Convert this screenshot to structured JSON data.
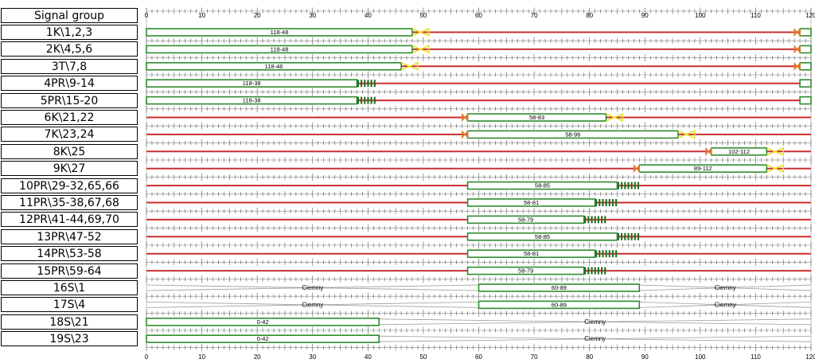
{
  "header": {
    "signal_group_label": "Signal group"
  },
  "colors": {
    "red": "#cc2e2e",
    "green": "#2e8b2e",
    "yellow": "#e8e02a",
    "orange": "#e07a2a",
    "gray": "#9a9a9a",
    "tick": "#555555"
  },
  "chart_data": {
    "type": "gantt",
    "title": "",
    "x_range": [
      0,
      120
    ],
    "x_ticks": [
      0,
      10,
      20,
      30,
      40,
      50,
      60,
      70,
      80,
      90,
      100,
      110,
      120
    ],
    "rows": [
      {
        "name": "1K\\1,2,3",
        "kind": "vehicle",
        "green": [
          [
            0,
            48
          ],
          [
            118,
            120
          ]
        ],
        "green_labels": [
          "118-48",
          ""
        ],
        "yellow": [
          [
            48,
            51
          ]
        ],
        "red_yellow": [
          [
            117,
            118
          ]
        ]
      },
      {
        "name": "2K\\4,5,6",
        "kind": "vehicle",
        "green": [
          [
            0,
            48
          ],
          [
            118,
            120
          ]
        ],
        "green_labels": [
          "118-48",
          ""
        ],
        "yellow": [
          [
            48,
            51
          ]
        ],
        "red_yellow": [
          [
            117,
            118
          ]
        ]
      },
      {
        "name": "3T\\7,8",
        "kind": "vehicle",
        "green": [
          [
            0,
            46
          ],
          [
            118,
            120
          ]
        ],
        "green_labels": [
          "118-46",
          ""
        ],
        "yellow": [
          [
            46,
            49
          ]
        ],
        "red_yellow": [
          [
            117,
            118
          ]
        ]
      },
      {
        "name": "4PR\\9-14",
        "kind": "pedestrian",
        "green": [
          [
            0,
            38
          ],
          [
            118,
            120
          ]
        ],
        "green_labels": [
          "118-38",
          ""
        ],
        "flash": [
          [
            38,
            42
          ]
        ]
      },
      {
        "name": "5PR\\15-20",
        "kind": "pedestrian",
        "green": [
          [
            0,
            38
          ],
          [
            118,
            120
          ]
        ],
        "green_labels": [
          "118-38",
          ""
        ],
        "flash": [
          [
            38,
            42
          ]
        ]
      },
      {
        "name": "6K\\21,22",
        "kind": "vehicle",
        "green": [
          [
            58,
            83
          ]
        ],
        "green_labels": [
          "58-83"
        ],
        "yellow": [
          [
            83,
            86
          ]
        ],
        "red_yellow": [
          [
            57,
            58
          ]
        ]
      },
      {
        "name": "7K\\23,24",
        "kind": "vehicle",
        "green": [
          [
            58,
            96
          ]
        ],
        "green_labels": [
          "58-96"
        ],
        "yellow": [
          [
            96,
            99
          ]
        ],
        "red_yellow": [
          [
            57,
            58
          ]
        ]
      },
      {
        "name": "8K\\25",
        "kind": "vehicle",
        "green": [
          [
            102,
            112
          ]
        ],
        "green_labels": [
          "102-112"
        ],
        "yellow": [
          [
            112,
            115
          ]
        ],
        "red_yellow": [
          [
            101,
            102
          ]
        ]
      },
      {
        "name": "9K\\27",
        "kind": "vehicle",
        "green": [
          [
            89,
            112
          ]
        ],
        "green_labels": [
          "89-112"
        ],
        "yellow": [
          [
            112,
            115
          ]
        ],
        "red_yellow": [
          [
            88,
            89
          ]
        ]
      },
      {
        "name": "10PR\\29-32,65,66",
        "kind": "pedestrian",
        "green": [
          [
            58,
            85
          ]
        ],
        "green_labels": [
          "58-85"
        ],
        "flash": [
          [
            85,
            89
          ]
        ]
      },
      {
        "name": "11PR\\35-38,67,68",
        "kind": "pedestrian",
        "green": [
          [
            58,
            81
          ]
        ],
        "green_labels": [
          "58-81"
        ],
        "flash": [
          [
            81,
            85
          ]
        ]
      },
      {
        "name": "12PR\\41-44,69,70",
        "kind": "pedestrian",
        "green": [
          [
            58,
            79
          ]
        ],
        "green_labels": [
          "58-79"
        ],
        "flash": [
          [
            79,
            83
          ]
        ]
      },
      {
        "name": "13PR\\47-52",
        "kind": "pedestrian",
        "green": [
          [
            58,
            85
          ]
        ],
        "green_labels": [
          "58-85"
        ],
        "flash": [
          [
            85,
            89
          ]
        ]
      },
      {
        "name": "14PR\\53-58",
        "kind": "pedestrian",
        "green": [
          [
            58,
            81
          ]
        ],
        "green_labels": [
          "58-81"
        ],
        "flash": [
          [
            81,
            85
          ]
        ]
      },
      {
        "name": "15PR\\59-64",
        "kind": "pedestrian",
        "green": [
          [
            58,
            79
          ]
        ],
        "green_labels": [
          "58-79"
        ],
        "flash": [
          [
            79,
            83
          ]
        ]
      },
      {
        "name": "16S\\1",
        "kind": "dark",
        "green": [
          [
            60,
            89
          ]
        ],
        "green_labels": [
          "60-89"
        ],
        "dark": [
          [
            0,
            60
          ],
          [
            89,
            120
          ]
        ],
        "dark_label": "Ciemny"
      },
      {
        "name": "17S\\4",
        "kind": "dark",
        "green": [
          [
            60,
            89
          ]
        ],
        "green_labels": [
          "60-89"
        ],
        "dark": [
          [
            0,
            60
          ],
          [
            89,
            120
          ]
        ],
        "dark_label": "Ciemny"
      },
      {
        "name": "18S\\21",
        "kind": "dark",
        "green": [
          [
            0,
            42
          ]
        ],
        "green_labels": [
          "0-42"
        ],
        "dark": [
          [
            42,
            120
          ]
        ],
        "dark_label": "Ciemny"
      },
      {
        "name": "19S\\23",
        "kind": "dark",
        "green": [
          [
            0,
            42
          ]
        ],
        "green_labels": [
          "0-42"
        ],
        "dark": [
          [
            42,
            120
          ]
        ],
        "dark_label": "Ciemny"
      }
    ]
  }
}
